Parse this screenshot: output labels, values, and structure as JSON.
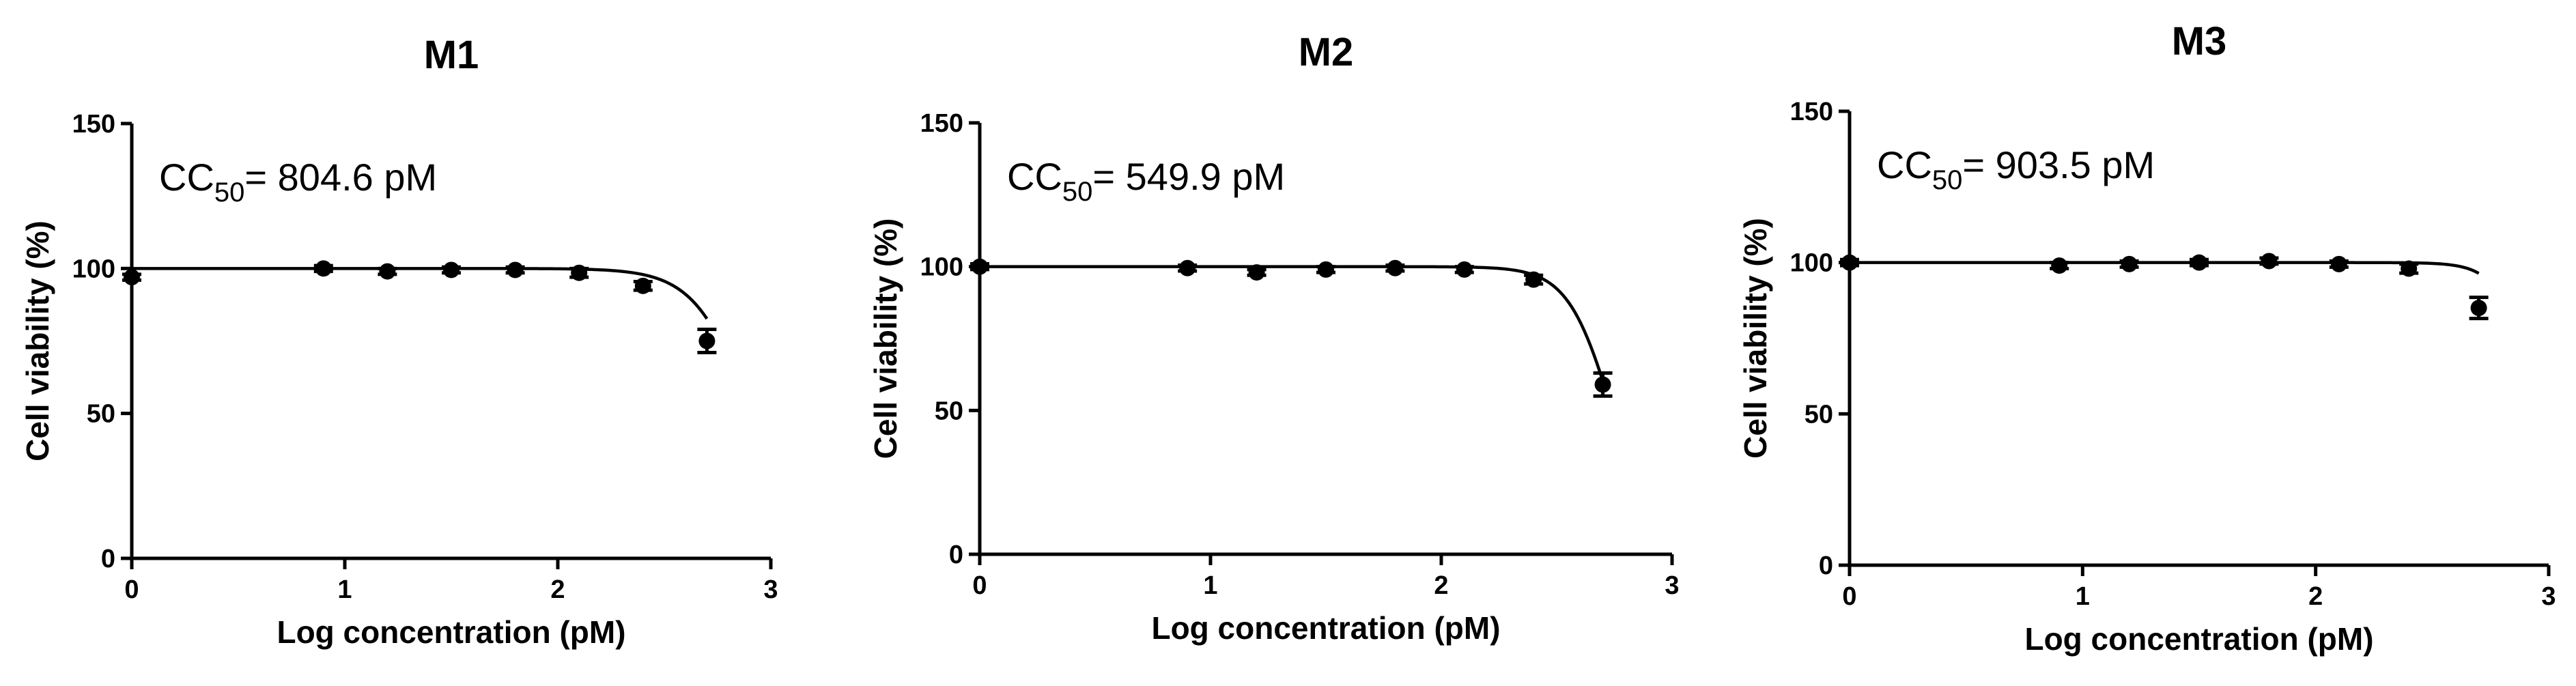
{
  "chart_data": [
    {
      "type": "scatter",
      "title": "M1",
      "xlabel": "Log concentration  (pM)",
      "ylabel": "Cell viability (%)",
      "xlim": [
        0,
        3
      ],
      "ylim": [
        0,
        150
      ],
      "xticks": [
        "0",
        "1",
        "2",
        "3"
      ],
      "yticks": [
        "0",
        "50",
        "100",
        "150"
      ],
      "grid": false,
      "annotation": {
        "prefix": "CC",
        "subscript": "50",
        "suffix": "= 804.6 pM"
      },
      "series": [
        {
          "x": [
            0,
            0.9,
            1.2,
            1.5,
            1.8,
            2.1,
            2.4,
            2.7
          ],
          "y": [
            97,
            100,
            99,
            99.5,
            99.5,
            98.5,
            94,
            75
          ],
          "err": [
            1,
            1,
            1,
            1,
            1,
            1.5,
            1.5,
            4
          ]
        }
      ],
      "fit": {
        "top": 100,
        "bottom": 0,
        "logIC50": 2.9056,
        "hill": 3.3
      }
    },
    {
      "type": "scatter",
      "title": "M2",
      "xlabel": "Log concentration  (pM)",
      "ylabel": "Cell viability (%)",
      "xlim": [
        0,
        3
      ],
      "ylim": [
        0,
        150
      ],
      "xticks": [
        "0",
        "1",
        "2",
        "3"
      ],
      "yticks": [
        "0",
        "50",
        "100",
        "150"
      ],
      "grid": false,
      "annotation": {
        "prefix": "CC",
        "subscript": "50",
        "suffix": "= 549.9 pM"
      },
      "series": [
        {
          "x": [
            0,
            0.9,
            1.2,
            1.5,
            1.8,
            2.1,
            2.4,
            2.7
          ],
          "y": [
            100,
            99.5,
            98,
            99,
            99.5,
            99,
            95.5,
            59
          ],
          "err": [
            1,
            1,
            1,
            1,
            1,
            1,
            1.5,
            4
          ]
        }
      ],
      "fit": {
        "top": 100,
        "bottom": 0,
        "logIC50": 2.7403,
        "hill": 4.5
      }
    },
    {
      "type": "scatter",
      "title": "M3",
      "xlabel": "Log concentration  (pM)",
      "ylabel": "Cell viability (%)",
      "xlim": [
        0,
        3
      ],
      "ylim": [
        0,
        150
      ],
      "xticks": [
        "0",
        "1",
        "2",
        "3"
      ],
      "yticks": [
        "0",
        "50",
        "100",
        "150"
      ],
      "grid": false,
      "annotation": {
        "prefix": "CC",
        "subscript": "50",
        "suffix": "= 903.5 pM"
      },
      "series": [
        {
          "x": [
            0,
            0.9,
            1.2,
            1.5,
            1.8,
            2.1,
            2.4,
            2.7
          ],
          "y": [
            100,
            99,
            99.5,
            100,
            100.5,
            99.5,
            98,
            85
          ],
          "err": [
            1,
            1,
            1,
            1,
            1,
            1,
            1.5,
            3.5
          ]
        }
      ],
      "fit": {
        "top": 100,
        "bottom": 0,
        "logIC50": 2.9559,
        "hill": 5.6
      }
    }
  ]
}
